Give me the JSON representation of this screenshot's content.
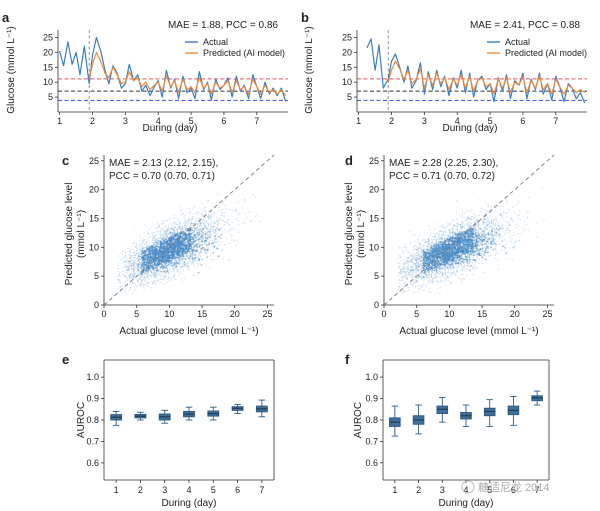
{
  "panels": {
    "a": {
      "letter": "a",
      "ylabel": "Glucose (mmol L⁻¹)",
      "xlabel": "During (day)",
      "metric": "MAE = 1.88, PCC = 0.86"
    },
    "b": {
      "letter": "b",
      "ylabel": "Glucose (mmol L⁻¹)",
      "xlabel": "During (day)",
      "metric": "MAE = 2.41, PCC = 0.88"
    },
    "c": {
      "letter": "c",
      "ylabel1": "Predicted glucose level",
      "ylabel2": "(mmol L⁻¹)",
      "xlabel": "Actual glucose level (mmol L⁻¹)",
      "ann1": "MAE = 2.13 (2.12, 2.15),",
      "ann2": "PCC = 0.70 (0.70, 0.71)"
    },
    "d": {
      "letter": "d",
      "ylabel1": "Predicted glucose level",
      "ylabel2": "(mmol L⁻¹)",
      "xlabel": "Actual glucose level (mmol L⁻¹)",
      "ann1": "MAE = 2.28 (2.25, 2.30),",
      "ann2": "PCC = 0.71 (0.70, 0.72)"
    },
    "e": {
      "letter": "e",
      "ylabel": "AUROC",
      "xlabel": "During (day)"
    },
    "f": {
      "letter": "f",
      "ylabel": "AUROC",
      "xlabel": "During (day)"
    }
  },
  "legend": {
    "actual": "Actual",
    "predicted": "Predicted (AI model)"
  },
  "watermark": "糖适尼龙 2014",
  "colors": {
    "actual": "#3b7dc4",
    "predicted": "#ef8a3a",
    "red_line": "#e8505b",
    "black_line": "#333333",
    "blue_line": "#3b4fd8",
    "scatter": "#4a8ac4",
    "box": "#2e5a80"
  },
  "chart_data": [
    {
      "id": "a",
      "type": "line",
      "title": "",
      "xlabel": "During (day)",
      "ylabel": "Glucose (mmol L⁻¹)",
      "xlim": [
        0.95,
        7.95
      ],
      "ylim": [
        0,
        27.5
      ],
      "xticks": [
        1,
        2,
        3,
        4,
        5,
        6,
        7
      ],
      "yticks": [
        5,
        10,
        15,
        20,
        25
      ],
      "vline_x": 1.9,
      "hlines": [
        {
          "y": 11.1,
          "color": "red"
        },
        {
          "y": 7.0,
          "color": "black"
        },
        {
          "y": 3.9,
          "color": "blue"
        }
      ],
      "x": [
        1.0,
        1.12,
        1.25,
        1.38,
        1.5,
        1.62,
        1.75,
        1.9,
        2.0,
        2.12,
        2.25,
        2.38,
        2.5,
        2.62,
        2.75,
        2.88,
        3.0,
        3.12,
        3.25,
        3.38,
        3.5,
        3.62,
        3.75,
        3.88,
        4.0,
        4.12,
        4.25,
        4.38,
        4.5,
        4.62,
        4.75,
        4.88,
        5.0,
        5.12,
        5.25,
        5.38,
        5.5,
        5.62,
        5.75,
        5.88,
        6.0,
        6.12,
        6.25,
        6.38,
        6.5,
        6.62,
        6.75,
        6.88,
        7.0,
        7.12,
        7.25,
        7.38,
        7.5,
        7.62,
        7.75,
        7.88
      ],
      "series": [
        {
          "name": "Actual",
          "values": [
            20.5,
            15.5,
            23.5,
            16.0,
            20.0,
            12.5,
            22.0,
            9.5,
            19.0,
            25.0,
            20.5,
            14.0,
            9.5,
            15.5,
            13.0,
            8.0,
            9.5,
            16.0,
            10.5,
            12.5,
            7.0,
            9.0,
            5.5,
            8.5,
            10.5,
            5.0,
            14.0,
            8.0,
            11.0,
            4.5,
            12.0,
            6.5,
            8.0,
            4.5,
            13.5,
            7.5,
            10.0,
            4.0,
            11.0,
            7.5,
            9.0,
            11.5,
            5.0,
            12.0,
            7.0,
            9.0,
            4.5,
            12.5,
            8.5,
            4.5,
            10.0,
            6.0,
            8.0,
            5.5,
            8.0,
            3.5
          ]
        },
        {
          "name": "Predicted (AI model)",
          "values": [
            null,
            null,
            null,
            null,
            null,
            null,
            null,
            11.0,
            16.0,
            20.0,
            17.0,
            13.0,
            11.5,
            15.0,
            12.5,
            9.5,
            10.0,
            13.5,
            10.5,
            11.5,
            8.5,
            10.0,
            7.5,
            9.0,
            10.0,
            7.0,
            12.0,
            8.5,
            10.5,
            6.5,
            11.0,
            7.5,
            8.5,
            6.5,
            11.5,
            8.0,
            9.5,
            6.0,
            10.0,
            8.0,
            9.0,
            10.5,
            6.5,
            10.5,
            7.5,
            8.5,
            6.0,
            11.0,
            8.5,
            6.0,
            9.0,
            6.5,
            7.5,
            6.0,
            7.5,
            5.5
          ]
        }
      ]
    },
    {
      "id": "b",
      "type": "line",
      "title": "",
      "xlabel": "During (day)",
      "ylabel": "Glucose (mmol L⁻¹)",
      "xlim": [
        0.95,
        7.95
      ],
      "ylim": [
        0,
        27.5
      ],
      "xticks": [
        1,
        2,
        3,
        4,
        5,
        6,
        7
      ],
      "yticks": [
        5,
        10,
        15,
        20,
        25
      ],
      "vline_x": 1.9,
      "hlines": [
        {
          "y": 11.1,
          "color": "red"
        },
        {
          "y": 7.0,
          "color": "black"
        },
        {
          "y": 3.9,
          "color": "blue"
        }
      ],
      "x": [
        1.25,
        1.38,
        1.5,
        1.62,
        1.75,
        1.9,
        2.0,
        2.12,
        2.25,
        2.38,
        2.5,
        2.62,
        2.75,
        2.88,
        3.0,
        3.12,
        3.25,
        3.38,
        3.5,
        3.62,
        3.75,
        3.88,
        4.0,
        4.12,
        4.25,
        4.38,
        4.5,
        4.62,
        4.75,
        4.88,
        5.0,
        5.12,
        5.25,
        5.38,
        5.5,
        5.62,
        5.75,
        5.88,
        6.0,
        6.12,
        6.25,
        6.38,
        6.5,
        6.62,
        6.75,
        6.88,
        7.0,
        7.12,
        7.25,
        7.38,
        7.5,
        7.62,
        7.75,
        7.88
      ],
      "series": [
        {
          "name": "Actual",
          "values": [
            21.5,
            24.5,
            14.0,
            22.5,
            8.0,
            11.0,
            17.0,
            19.5,
            15.0,
            10.0,
            15.5,
            8.0,
            10.5,
            16.5,
            6.0,
            13.5,
            7.5,
            14.0,
            8.5,
            12.0,
            5.5,
            11.5,
            8.0,
            14.0,
            6.5,
            13.0,
            5.0,
            10.5,
            12.0,
            7.5,
            9.5,
            3.5,
            11.5,
            7.0,
            12.5,
            4.5,
            10.5,
            9.0,
            13.0,
            4.5,
            11.0,
            7.5,
            13.0,
            6.0,
            9.5,
            4.0,
            12.0,
            8.5,
            3.5,
            9.5,
            8.0,
            4.5,
            6.5,
            3.0
          ]
        },
        {
          "name": "Predicted (AI model)",
          "values": [
            null,
            null,
            null,
            null,
            null,
            10.0,
            14.0,
            17.0,
            14.5,
            11.0,
            14.0,
            9.5,
            11.0,
            14.5,
            8.0,
            12.5,
            9.0,
            13.0,
            9.5,
            11.5,
            7.5,
            11.0,
            9.0,
            12.5,
            8.0,
            12.0,
            7.0,
            10.5,
            11.5,
            8.5,
            9.5,
            6.0,
            11.0,
            8.0,
            11.5,
            6.5,
            10.0,
            9.0,
            12.0,
            6.5,
            10.5,
            8.0,
            12.0,
            7.5,
            9.5,
            6.0,
            11.0,
            8.5,
            6.0,
            9.0,
            8.0,
            6.5,
            7.5,
            6.5
          ]
        }
      ]
    },
    {
      "id": "c",
      "type": "scatter",
      "title": "",
      "xlabel": "Actual glucose level (mmol L⁻¹)",
      "ylabel": "Predicted glucose level (mmol L⁻¹)",
      "xlim": [
        0,
        26
      ],
      "ylim": [
        0,
        26
      ],
      "xticks": [
        0,
        5,
        10,
        15,
        20,
        25
      ],
      "yticks": [
        0,
        5,
        10,
        15,
        20,
        25
      ],
      "diagonal": true,
      "n_points": 3200,
      "correlation": 0.7,
      "x_mean": 9.5,
      "x_sd": 3.8,
      "y_mean": 9.4,
      "y_sd": 2.9,
      "annotation": [
        "MAE = 2.13 (2.12, 2.15),",
        "PCC = 0.70 (0.70, 0.71)"
      ]
    },
    {
      "id": "d",
      "type": "scatter",
      "title": "",
      "xlabel": "Actual glucose level (mmol L⁻¹)",
      "ylabel": "Predicted glucose level (mmol L⁻¹)",
      "xlim": [
        0,
        26
      ],
      "ylim": [
        0,
        26
      ],
      "xticks": [
        0,
        5,
        10,
        15,
        20,
        25
      ],
      "yticks": [
        0,
        5,
        10,
        15,
        20,
        25
      ],
      "diagonal": true,
      "n_points": 3200,
      "correlation": 0.71,
      "x_mean": 9.8,
      "x_sd": 3.9,
      "y_mean": 9.5,
      "y_sd": 2.9,
      "annotation": [
        "MAE = 2.28 (2.25, 2.30),",
        "PCC = 0.71 (0.70, 0.72)"
      ]
    },
    {
      "id": "e",
      "type": "box",
      "title": "",
      "xlabel": "During (day)",
      "ylabel": "AUROC",
      "ylim": [
        0.52,
        1.08
      ],
      "yticks": [
        0.6,
        0.7,
        0.8,
        0.9,
        1.0
      ],
      "categories": [
        "1",
        "2",
        "3",
        "4",
        "5",
        "6",
        "7"
      ],
      "boxes": [
        {
          "min": 0.775,
          "q1": 0.8,
          "median": 0.813,
          "q3": 0.825,
          "max": 0.84
        },
        {
          "min": 0.8,
          "q1": 0.81,
          "median": 0.818,
          "q3": 0.826,
          "max": 0.836
        },
        {
          "min": 0.785,
          "q1": 0.8,
          "median": 0.815,
          "q3": 0.828,
          "max": 0.845
        },
        {
          "min": 0.8,
          "q1": 0.815,
          "median": 0.827,
          "q3": 0.84,
          "max": 0.86
        },
        {
          "min": 0.8,
          "q1": 0.818,
          "median": 0.83,
          "q3": 0.842,
          "max": 0.86
        },
        {
          "min": 0.83,
          "q1": 0.845,
          "median": 0.855,
          "q3": 0.862,
          "max": 0.872
        },
        {
          "min": 0.815,
          "q1": 0.838,
          "median": 0.852,
          "q3": 0.865,
          "max": 0.893
        }
      ]
    },
    {
      "id": "f",
      "type": "box",
      "title": "",
      "xlabel": "During (day)",
      "ylabel": "AUROC",
      "ylim": [
        0.52,
        1.08
      ],
      "yticks": [
        0.6,
        0.7,
        0.8,
        0.9,
        1.0
      ],
      "categories": [
        "1",
        "2",
        "3",
        "4",
        "5",
        "6",
        "7"
      ],
      "boxes": [
        {
          "min": 0.725,
          "q1": 0.77,
          "median": 0.79,
          "q3": 0.81,
          "max": 0.865
        },
        {
          "min": 0.735,
          "q1": 0.78,
          "median": 0.8,
          "q3": 0.82,
          "max": 0.87
        },
        {
          "min": 0.79,
          "q1": 0.83,
          "median": 0.85,
          "q3": 0.865,
          "max": 0.905
        },
        {
          "min": 0.77,
          "q1": 0.805,
          "median": 0.82,
          "q3": 0.835,
          "max": 0.87
        },
        {
          "min": 0.77,
          "q1": 0.82,
          "median": 0.84,
          "q3": 0.855,
          "max": 0.895
        },
        {
          "min": 0.775,
          "q1": 0.825,
          "median": 0.845,
          "q3": 0.865,
          "max": 0.91
        },
        {
          "min": 0.87,
          "q1": 0.89,
          "median": 0.903,
          "q3": 0.913,
          "max": 0.935
        }
      ]
    }
  ]
}
